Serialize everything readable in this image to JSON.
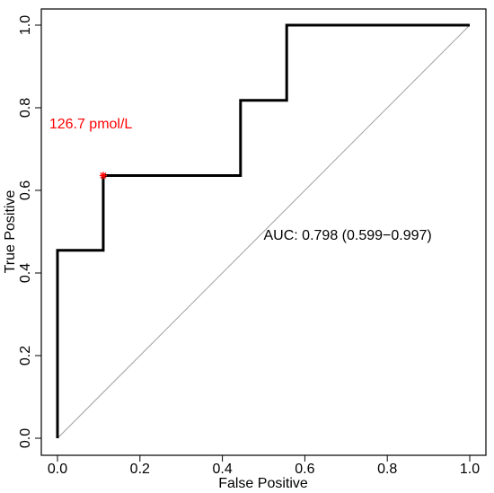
{
  "chart_data": {
    "type": "line",
    "xlabel": "False Positive",
    "ylabel": "True Positive",
    "xlim": [
      0,
      1
    ],
    "ylim": [
      0,
      1
    ],
    "x_ticks": [
      0,
      0.2,
      0.4,
      0.6,
      0.8,
      1
    ],
    "y_ticks": [
      0,
      0.2,
      0.4,
      0.6,
      0.8,
      1
    ],
    "x_tick_labels": [
      "0.0",
      "0.2",
      "0.4",
      "0.6",
      "0.8",
      "1.0"
    ],
    "y_tick_labels": [
      "0.0",
      "0.2",
      "0.4",
      "0.6",
      "0.8",
      "1.0"
    ],
    "grid": false,
    "series": [
      {
        "x": [
          0,
          0,
          0.111,
          0.111,
          0.444,
          0.444,
          0.556,
          0.556,
          1
        ],
        "y": [
          0,
          0.455,
          0.455,
          0.636,
          0.636,
          0.818,
          0.818,
          1,
          1
        ],
        "color": "#000000"
      }
    ],
    "reference_line": {
      "x": [
        0,
        1
      ],
      "y": [
        0,
        1
      ],
      "color": "#a0a0a0"
    },
    "highlight_point": {
      "x": 0.111,
      "y": 0.636,
      "label": "126.7 pmol/L",
      "color": "#ff0000"
    },
    "annotations": [
      {
        "text": "AUC: 0.798 (0.599−0.997)",
        "x": 0.5,
        "y": 0.48,
        "color": "#000000"
      },
      {
        "text": "126.7 pmol/L",
        "x": -0.02,
        "y": 0.75,
        "color": "#ff0000"
      }
    ]
  }
}
